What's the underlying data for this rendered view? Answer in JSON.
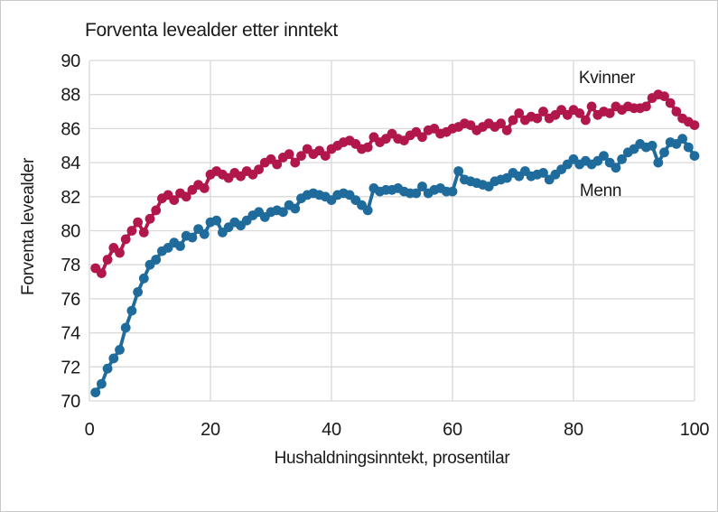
{
  "chart_data": {
    "type": "line",
    "title": "Forventa levealder etter inntekt",
    "xlabel": "Hushaldningsinntekt, prosentilar",
    "ylabel": "Forventa levealder",
    "xlim": [
      0,
      100
    ],
    "ylim": [
      70,
      90
    ],
    "xtick_step": 20,
    "ytick_step": 2,
    "xticks": [
      0,
      20,
      40,
      60,
      80,
      100
    ],
    "yticks": [
      70,
      72,
      74,
      76,
      78,
      80,
      82,
      84,
      86,
      88,
      90
    ],
    "grid": true,
    "gridline_color": "#d9d9d9",
    "background_color": "#ffffff",
    "frame_border_color": "#c9c9c9",
    "legend_position": "labels-inside-plot",
    "x": [
      1,
      2,
      3,
      4,
      5,
      6,
      7,
      8,
      9,
      10,
      11,
      12,
      13,
      14,
      15,
      16,
      17,
      18,
      19,
      20,
      21,
      22,
      23,
      24,
      25,
      26,
      27,
      28,
      29,
      30,
      31,
      32,
      33,
      34,
      35,
      36,
      37,
      38,
      39,
      40,
      41,
      42,
      43,
      44,
      45,
      46,
      47,
      48,
      49,
      50,
      51,
      52,
      53,
      54,
      55,
      56,
      57,
      58,
      59,
      60,
      61,
      62,
      63,
      64,
      65,
      66,
      67,
      68,
      69,
      70,
      71,
      72,
      73,
      74,
      75,
      76,
      77,
      78,
      79,
      80,
      81,
      82,
      83,
      84,
      85,
      86,
      87,
      88,
      89,
      90,
      91,
      92,
      93,
      94,
      95,
      96,
      97,
      98,
      99,
      100
    ],
    "series": [
      {
        "name": "Kvinner",
        "color": "#b2174b",
        "marker": "circle",
        "values": [
          77.8,
          77.5,
          78.3,
          79.0,
          78.7,
          79.5,
          80.0,
          80.5,
          79.9,
          80.7,
          81.2,
          81.9,
          82.1,
          81.8,
          82.2,
          82.0,
          82.4,
          82.7,
          82.5,
          83.3,
          83.5,
          83.3,
          83.1,
          83.4,
          83.2,
          83.5,
          83.3,
          83.6,
          84.0,
          84.2,
          83.9,
          84.3,
          84.5,
          84.0,
          84.4,
          84.8,
          84.5,
          84.7,
          84.4,
          84.8,
          85.0,
          85.2,
          85.3,
          85.1,
          84.8,
          84.9,
          85.5,
          85.2,
          85.4,
          85.7,
          85.4,
          85.3,
          85.6,
          85.8,
          85.5,
          85.9,
          86.0,
          85.7,
          85.8,
          86.0,
          86.1,
          86.3,
          86.2,
          85.9,
          86.1,
          86.3,
          86.1,
          86.3,
          85.9,
          86.5,
          86.9,
          86.5,
          86.7,
          86.6,
          87.0,
          86.6,
          86.8,
          87.1,
          86.8,
          87.1,
          86.9,
          86.5,
          87.3,
          86.8,
          87.0,
          86.9,
          87.3,
          87.1,
          87.3,
          87.2,
          87.2,
          87.3,
          87.8,
          88.0,
          87.9,
          87.5,
          87.0,
          86.6,
          86.4,
          86.2
        ]
      },
      {
        "name": "Menn",
        "color": "#1f6b9b",
        "marker": "circle",
        "values": [
          70.5,
          71.0,
          71.9,
          72.5,
          73.0,
          74.3,
          75.3,
          76.4,
          77.2,
          78.0,
          78.3,
          78.8,
          79.0,
          79.3,
          79.1,
          79.7,
          79.6,
          80.1,
          79.8,
          80.5,
          80.6,
          79.9,
          80.2,
          80.5,
          80.3,
          80.6,
          80.9,
          81.1,
          80.8,
          81.1,
          81.2,
          81.1,
          81.5,
          81.3,
          81.9,
          82.1,
          82.2,
          82.1,
          82.0,
          81.8,
          82.1,
          82.2,
          82.1,
          81.8,
          81.5,
          81.2,
          82.5,
          82.3,
          82.4,
          82.4,
          82.5,
          82.3,
          82.2,
          82.2,
          82.6,
          82.2,
          82.4,
          82.5,
          82.3,
          82.3,
          83.5,
          83.0,
          82.9,
          82.8,
          82.7,
          82.6,
          82.9,
          83.0,
          83.1,
          83.4,
          83.2,
          83.5,
          83.2,
          83.3,
          83.4,
          83.0,
          83.3,
          83.6,
          83.9,
          84.2,
          83.9,
          84.1,
          83.9,
          84.1,
          84.4,
          84.0,
          83.7,
          84.2,
          84.6,
          84.8,
          85.1,
          84.9,
          85.0,
          84.0,
          84.6,
          85.2,
          85.1,
          85.4,
          84.9,
          84.4
        ]
      }
    ]
  }
}
